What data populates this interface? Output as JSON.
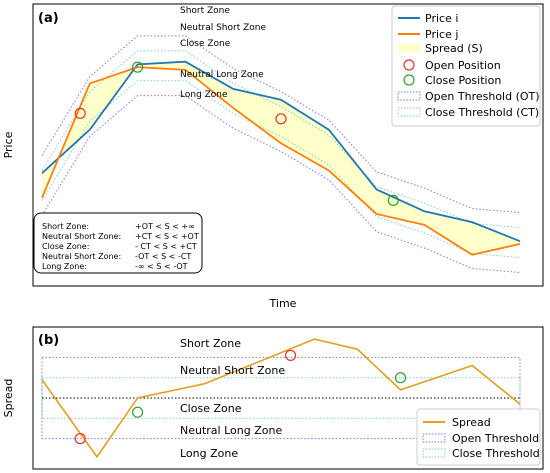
{
  "chart_data": [
    {
      "type": "line",
      "panel_label": "(a)",
      "xlabel": "Time",
      "ylabel": "Price",
      "x": [
        0,
        1,
        2,
        3,
        4,
        5,
        6,
        7,
        8,
        9,
        10
      ],
      "series": [
        {
          "name": "Price i",
          "color": "#1f77b4",
          "values": [
            0.4,
            0.56,
            0.8,
            0.81,
            0.71,
            0.67,
            0.56,
            0.34,
            0.26,
            0.22,
            0.15
          ]
        },
        {
          "name": "Price j",
          "color": "#ff7f0e",
          "values": [
            0.31,
            0.73,
            0.79,
            0.78,
            0.64,
            0.51,
            0.41,
            0.25,
            0.21,
            0.1,
            0.14
          ]
        }
      ],
      "spread_fill": {
        "name": "Spread (S)",
        "color": "#ffffcc"
      },
      "thresholds": {
        "open": {
          "name": "Open Threshold (OT)",
          "color": "#7b7bef",
          "offset": 0.11
        },
        "close": {
          "name": "Close Threshold (CT)",
          "color": "#7fd1c0",
          "offset": 0.055
        }
      },
      "markers": {
        "open": {
          "name": "Open Position",
          "color": "#e8342a",
          "points": [
            {
              "x": 0.8,
              "y": 0.62
            },
            {
              "x": 5.0,
              "y": 0.6
            }
          ]
        },
        "close": {
          "name": "Close Position",
          "color": "#2ca02c",
          "points": [
            {
              "x": 2.0,
              "y": 0.79
            },
            {
              "x": 7.35,
              "y": 0.3
            }
          ]
        }
      },
      "zones": [
        "Short Zone",
        "Neutral Short Zone",
        "Close Zone",
        "Neutral Long Zone",
        "Long Zone"
      ],
      "formulas": [
        {
          "zone": "Short Zone:",
          "rule": "+OT < S < +∞"
        },
        {
          "zone": "Neutral Short Zone:",
          "rule": "+CT < S < +OT"
        },
        {
          "zone": "Close Zone:",
          "rule": "- CT < S < +CT"
        },
        {
          "zone": "Neutral Short Zone:",
          "rule": "-OT < S < -CT"
        },
        {
          "zone": "Long Zone:",
          "rule": "-∞ < S < -OT"
        }
      ],
      "legend_position": "top-right",
      "ylim": [
        0,
        1
      ]
    },
    {
      "type": "line",
      "panel_label": "(b)",
      "ylabel": "Spread",
      "x": [
        0,
        1,
        2,
        3,
        4,
        5,
        6,
        7,
        8,
        9,
        10
      ],
      "series": [
        {
          "name": "Spread",
          "color": "#e0a020",
          "values": [
            0.09,
            -0.17,
            0.01,
            0.03,
            0.07,
            0.14,
            0.11,
            0.04,
            0.08,
            -0.01,
            0.09
          ]
        }
      ],
      "x_spread": [
        0,
        1.15,
        2,
        3.4,
        5.7,
        6.6,
        7.5,
        9.0,
        10
      ],
      "y_spread": [
        0.09,
        -0.29,
        0.0,
        0.07,
        0.29,
        0.24,
        0.04,
        0.16,
        -0.03
      ],
      "zones": [
        "Short Zone",
        "Neutral Short Zone",
        "Close Zone",
        "Neutral Long Zone",
        "Long Zone"
      ],
      "open_threshold": {
        "name": "Open Threshold",
        "value": 0.2,
        "color": "#7b7bef"
      },
      "close_threshold": {
        "name": "Close Threshold",
        "value": 0.1,
        "color": "#7fd1c0"
      },
      "markers": {
        "open": {
          "color": "#e8342a",
          "points": [
            {
              "x": 0.8,
              "y": -0.2
            },
            {
              "x": 5.2,
              "y": 0.21
            }
          ]
        },
        "close": {
          "color": "#2ca02c",
          "points": [
            {
              "x": 2.0,
              "y": -0.07
            },
            {
              "x": 7.5,
              "y": 0.1
            }
          ]
        }
      },
      "legend_position": "bottom-right",
      "ylim": [
        -0.33,
        0.33
      ]
    }
  ]
}
